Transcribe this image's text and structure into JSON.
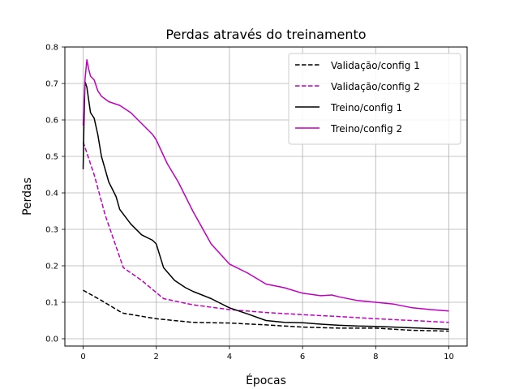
{
  "chart_data": {
    "type": "line",
    "title": "Perdas através do treinamento",
    "xlabel": "Épocas",
    "ylabel": "Perdas",
    "xlim": [
      -0.5,
      10.5
    ],
    "ylim": [
      -0.02,
      0.8
    ],
    "xticks": [
      0,
      2,
      4,
      6,
      8,
      10
    ],
    "yticks": [
      0.0,
      0.1,
      0.2,
      0.3,
      0.4,
      0.5,
      0.6,
      0.7,
      0.8
    ],
    "xtick_labels": [
      "0",
      "2",
      "4",
      "6",
      "8",
      "10"
    ],
    "ytick_labels": [
      "0.0",
      "0.1",
      "0.2",
      "0.3",
      "0.4",
      "0.5",
      "0.6",
      "0.7",
      "0.8"
    ],
    "grid": true,
    "legend_position": "top-right",
    "series": [
      {
        "name": "Validação/config 1",
        "color": "#000000",
        "style": "dashed",
        "x": [
          0,
          0.5,
          1.0,
          1.1,
          2,
          3,
          4,
          5,
          6,
          7,
          8,
          9,
          10
        ],
        "y": [
          0.133,
          0.105,
          0.075,
          0.07,
          0.055,
          0.045,
          0.043,
          0.038,
          0.032,
          0.029,
          0.029,
          0.023,
          0.021
        ]
      },
      {
        "name": "Validação/config 2",
        "color": "#bf00bf",
        "style": "dashed",
        "x": [
          0,
          0.3,
          0.6,
          1.1,
          1.6,
          2.2,
          3,
          4,
          5,
          6,
          7,
          8,
          9,
          10
        ],
        "y": [
          0.54,
          0.45,
          0.34,
          0.195,
          0.16,
          0.11,
          0.093,
          0.08,
          0.072,
          0.066,
          0.061,
          0.055,
          0.05,
          0.045
        ]
      },
      {
        "name": "Treino/config 1",
        "color": "#000000",
        "style": "solid",
        "x": [
          0,
          0.02,
          0.05,
          0.1,
          0.2,
          0.3,
          0.4,
          0.5,
          0.7,
          0.9,
          1.0,
          1.3,
          1.6,
          1.9,
          2.0,
          2.2,
          2.5,
          2.8,
          3.0,
          3.5,
          4.0,
          4.5,
          5.0,
          5.5,
          6.0,
          6.5,
          7.0,
          7.5,
          8.0,
          8.5,
          9.0,
          9.5,
          10.0
        ],
        "y": [
          0.465,
          0.575,
          0.705,
          0.69,
          0.62,
          0.605,
          0.56,
          0.5,
          0.43,
          0.39,
          0.355,
          0.315,
          0.285,
          0.27,
          0.26,
          0.195,
          0.16,
          0.14,
          0.13,
          0.11,
          0.085,
          0.068,
          0.05,
          0.045,
          0.044,
          0.04,
          0.037,
          0.035,
          0.034,
          0.032,
          0.03,
          0.028,
          0.026
        ]
      },
      {
        "name": "Treino/config 2",
        "color": "#bf00bf",
        "style": "solid",
        "x": [
          0,
          0.05,
          0.1,
          0.15,
          0.2,
          0.3,
          0.4,
          0.5,
          0.7,
          1.0,
          1.3,
          1.6,
          1.9,
          2.0,
          2.3,
          2.6,
          3.0,
          3.5,
          4.0,
          4.5,
          5.0,
          5.5,
          6.0,
          6.5,
          6.8,
          7.0,
          7.5,
          8.0,
          8.5,
          9.0,
          9.5,
          10.0
        ],
        "y": [
          0.585,
          0.71,
          0.765,
          0.74,
          0.72,
          0.71,
          0.68,
          0.665,
          0.65,
          0.64,
          0.62,
          0.59,
          0.56,
          0.545,
          0.48,
          0.43,
          0.35,
          0.26,
          0.205,
          0.18,
          0.15,
          0.14,
          0.125,
          0.118,
          0.12,
          0.115,
          0.105,
          0.1,
          0.095,
          0.085,
          0.08,
          0.076
        ]
      }
    ]
  }
}
